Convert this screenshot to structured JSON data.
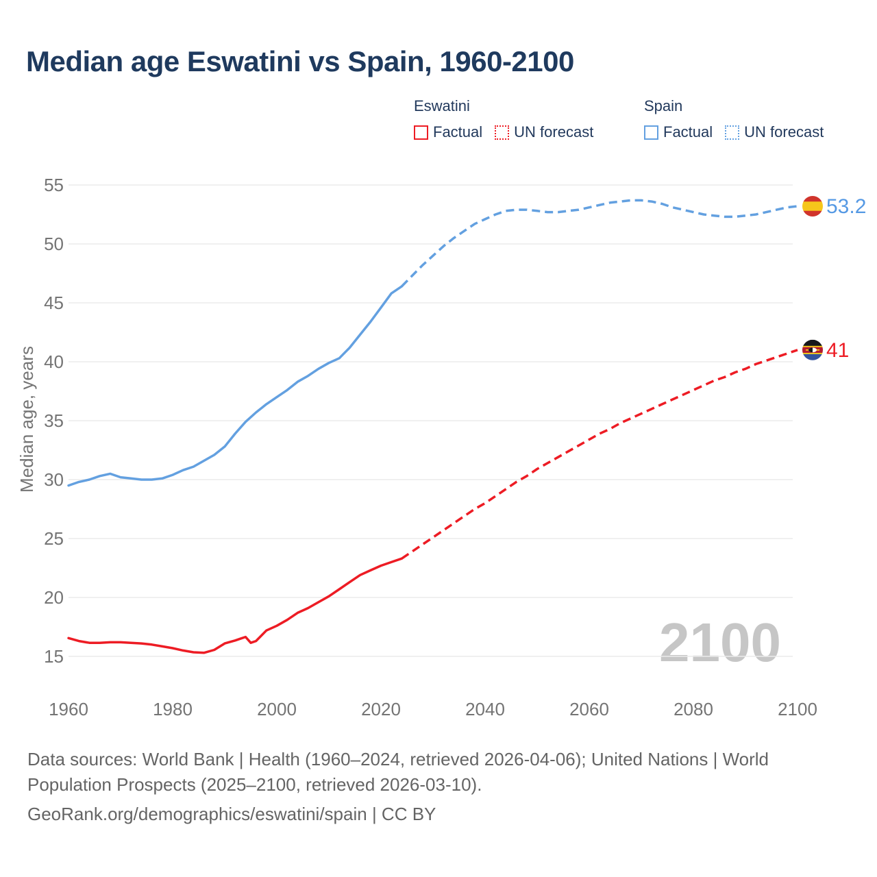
{
  "page": {
    "title": "Median age Eswatini vs Spain, 1960-2100",
    "footer": {
      "line1": "Data sources: World Bank | Health (1960–2024, retrieved 2026-04-06); United Nations | World",
      "line2": "Population Prospects (2025–2100, retrieved 2026-03-10).",
      "line3": "GeoRank.org/demographics/eswatini/spain | CC BY"
    }
  },
  "legend": {
    "groups": [
      {
        "name": "Eswatini",
        "color": "#ed1c24",
        "items": [
          {
            "label": "Factual",
            "style": "solid"
          },
          {
            "label": "UN forecast",
            "style": "dotted"
          }
        ]
      },
      {
        "name": "Spain",
        "color": "#63a0e0",
        "items": [
          {
            "label": "Factual",
            "style": "solid"
          },
          {
            "label": "UN forecast",
            "style": "dotted"
          }
        ]
      }
    ]
  },
  "colors": {
    "eswatini_red": "#ed1c24",
    "spain_blue": "#63a0e0",
    "spain_label_blue": "#5599e4",
    "title_navy": "#1f3a5e",
    "axis_gray": "#747474",
    "grid_gray": "#ececec",
    "watermark_gray": "#c6c6c6",
    "footer_gray": "#646464"
  },
  "chart_data": {
    "type": "line",
    "title": "Median age Eswatini vs Spain, 1960-2100",
    "xlabel": "",
    "ylabel": "Median age, years",
    "watermark": "2100",
    "grid": "horizontal",
    "legend_position": "top-right",
    "x_ticks": [
      1960,
      1980,
      2000,
      2020,
      2040,
      2060,
      2080,
      2100
    ],
    "y_ticks": [
      15,
      20,
      25,
      30,
      35,
      40,
      45,
      50,
      55
    ],
    "xlim": [
      1960,
      2100
    ],
    "ylim": [
      15,
      55
    ],
    "series": [
      {
        "name": "Spain — Factual",
        "style": "solid",
        "color": "#63a0e0",
        "x": [
          1960,
          1962,
          1964,
          1966,
          1968,
          1970,
          1972,
          1974,
          1976,
          1978,
          1980,
          1982,
          1984,
          1986,
          1988,
          1990,
          1992,
          1994,
          1996,
          1998,
          2000,
          2002,
          2004,
          2006,
          2008,
          2010,
          2012,
          2014,
          2016,
          2018,
          2020,
          2022,
          2024
        ],
        "values": [
          29.5,
          29.8,
          30.0,
          30.3,
          30.5,
          30.2,
          30.1,
          30.0,
          30.0,
          30.1,
          30.4,
          30.8,
          31.1,
          31.6,
          32.1,
          32.8,
          33.9,
          34.9,
          35.7,
          36.4,
          37.0,
          37.6,
          38.3,
          38.8,
          39.4,
          39.9,
          40.3,
          41.2,
          42.3,
          43.4,
          44.6,
          45.8,
          46.4
        ]
      },
      {
        "name": "Spain — UN forecast",
        "style": "dashed",
        "color": "#63a0e0",
        "x": [
          2024,
          2026,
          2028,
          2030,
          2032,
          2034,
          2036,
          2038,
          2040,
          2042,
          2044,
          2046,
          2048,
          2050,
          2052,
          2054,
          2056,
          2058,
          2060,
          2062,
          2064,
          2066,
          2068,
          2070,
          2072,
          2074,
          2076,
          2078,
          2080,
          2082,
          2084,
          2086,
          2088,
          2090,
          2092,
          2094,
          2096,
          2098,
          2100
        ],
        "values": [
          46.4,
          47.3,
          48.2,
          49.0,
          49.8,
          50.5,
          51.1,
          51.7,
          52.1,
          52.5,
          52.8,
          52.9,
          52.9,
          52.8,
          52.7,
          52.7,
          52.8,
          52.9,
          53.1,
          53.3,
          53.5,
          53.6,
          53.7,
          53.7,
          53.6,
          53.4,
          53.1,
          52.9,
          52.7,
          52.5,
          52.4,
          52.3,
          52.3,
          52.4,
          52.5,
          52.7,
          52.9,
          53.1,
          53.2
        ]
      },
      {
        "name": "Eswatini — Factual",
        "style": "solid",
        "color": "#ed1c24",
        "x": [
          1960,
          1962,
          1964,
          1966,
          1968,
          1970,
          1972,
          1974,
          1976,
          1978,
          1980,
          1982,
          1984,
          1986,
          1988,
          1990,
          1992,
          1993,
          1994,
          1995,
          1996,
          1998,
          2000,
          2002,
          2004,
          2006,
          2008,
          2010,
          2012,
          2014,
          2016,
          2018,
          2020,
          2022,
          2024
        ],
        "values": [
          16.55,
          16.3,
          16.15,
          16.15,
          16.2,
          16.2,
          16.15,
          16.1,
          16.0,
          15.85,
          15.7,
          15.5,
          15.35,
          15.3,
          15.55,
          16.1,
          16.35,
          16.5,
          16.65,
          16.15,
          16.3,
          17.2,
          17.6,
          18.1,
          18.7,
          19.1,
          19.6,
          20.1,
          20.7,
          21.3,
          21.9,
          22.3,
          22.7,
          23.0,
          23.3
        ]
      },
      {
        "name": "Eswatini — UN forecast",
        "style": "dashed",
        "color": "#ed1c24",
        "x": [
          2024,
          2026,
          2028,
          2030,
          2032,
          2034,
          2036,
          2038,
          2040,
          2042,
          2044,
          2046,
          2048,
          2050,
          2052,
          2054,
          2056,
          2058,
          2060,
          2062,
          2064,
          2066,
          2068,
          2070,
          2072,
          2074,
          2076,
          2078,
          2080,
          2082,
          2084,
          2086,
          2088,
          2090,
          2092,
          2094,
          2096,
          2098,
          2100
        ],
        "values": [
          23.3,
          23.9,
          24.5,
          25.1,
          25.7,
          26.3,
          26.9,
          27.5,
          28.0,
          28.6,
          29.2,
          29.8,
          30.3,
          30.9,
          31.4,
          31.9,
          32.4,
          32.9,
          33.4,
          33.9,
          34.3,
          34.8,
          35.2,
          35.6,
          36.0,
          36.4,
          36.8,
          37.2,
          37.6,
          38.0,
          38.4,
          38.7,
          39.1,
          39.4,
          39.8,
          40.1,
          40.4,
          40.7,
          41.0
        ]
      }
    ],
    "end_labels": [
      {
        "series": "Spain",
        "value": 53.2,
        "text": "53.2",
        "flag": "spain",
        "text_color": "#5599e4"
      },
      {
        "series": "Eswatini",
        "value": 41,
        "text": "41",
        "flag": "eswatini",
        "text_color": "#ed1c24"
      }
    ]
  }
}
